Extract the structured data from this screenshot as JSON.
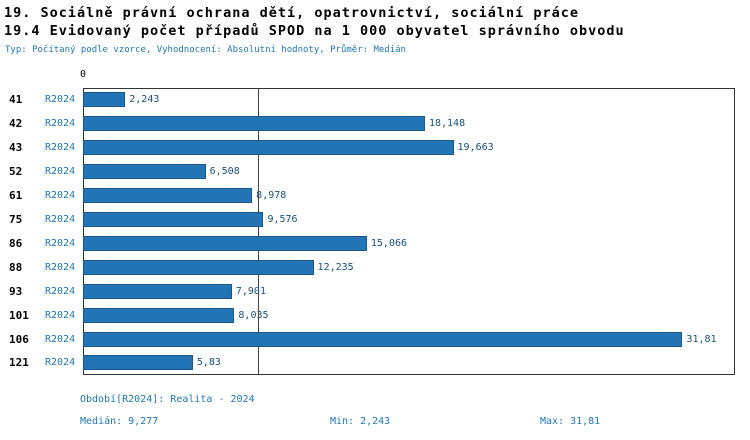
{
  "header": {
    "title_line1": "19. Sociálně právní ochrana dětí, opatrovnictví, sociální práce",
    "title_line2": "19.4 Evidovaný počet případů SPOD na 1 000 obyvatel správního obvodu",
    "subtitle": "Typ: Počítaný podle vzorce, Vyhodnocení: Absolutní hodnoty, Průměr: Medián"
  },
  "chart_data": {
    "type": "bar",
    "orientation": "horizontal",
    "title": "19.4 Evidovaný počet případů SPOD na 1 000 obyvatel správního obvodu",
    "x_axis_zero_label": "0",
    "series_label": "R2024",
    "categories": [
      "41",
      "42",
      "43",
      "52",
      "61",
      "75",
      "86",
      "88",
      "93",
      "101",
      "106",
      "121"
    ],
    "values": [
      2.243,
      18.148,
      19.663,
      6.508,
      8.978,
      9.576,
      15.066,
      12.235,
      7.901,
      8.035,
      31.81,
      5.83
    ],
    "value_labels": [
      "2,243",
      "18,148",
      "19,663",
      "6,508",
      "8,978",
      "9,576",
      "15,066",
      "12,235",
      "7,901",
      "8,035",
      "31,81",
      "5,83"
    ],
    "xlim": [
      0,
      34.6
    ],
    "median": 9.277,
    "grid": false,
    "legend": "none"
  },
  "footer": {
    "period": "Období[R2024]: Realita - 2024",
    "median": "Medián: 9,277",
    "min": "Min: 2,243",
    "max": "Max: 31,81"
  },
  "colors": {
    "bar": "#2374b5",
    "bar_border": "#19588c",
    "series_label": "#1f77b4",
    "value_label": "#17517f",
    "subtitle": "#1f77b4",
    "footer": "#1f77b4",
    "median_line": "#444444",
    "plot_border": "#333333"
  }
}
